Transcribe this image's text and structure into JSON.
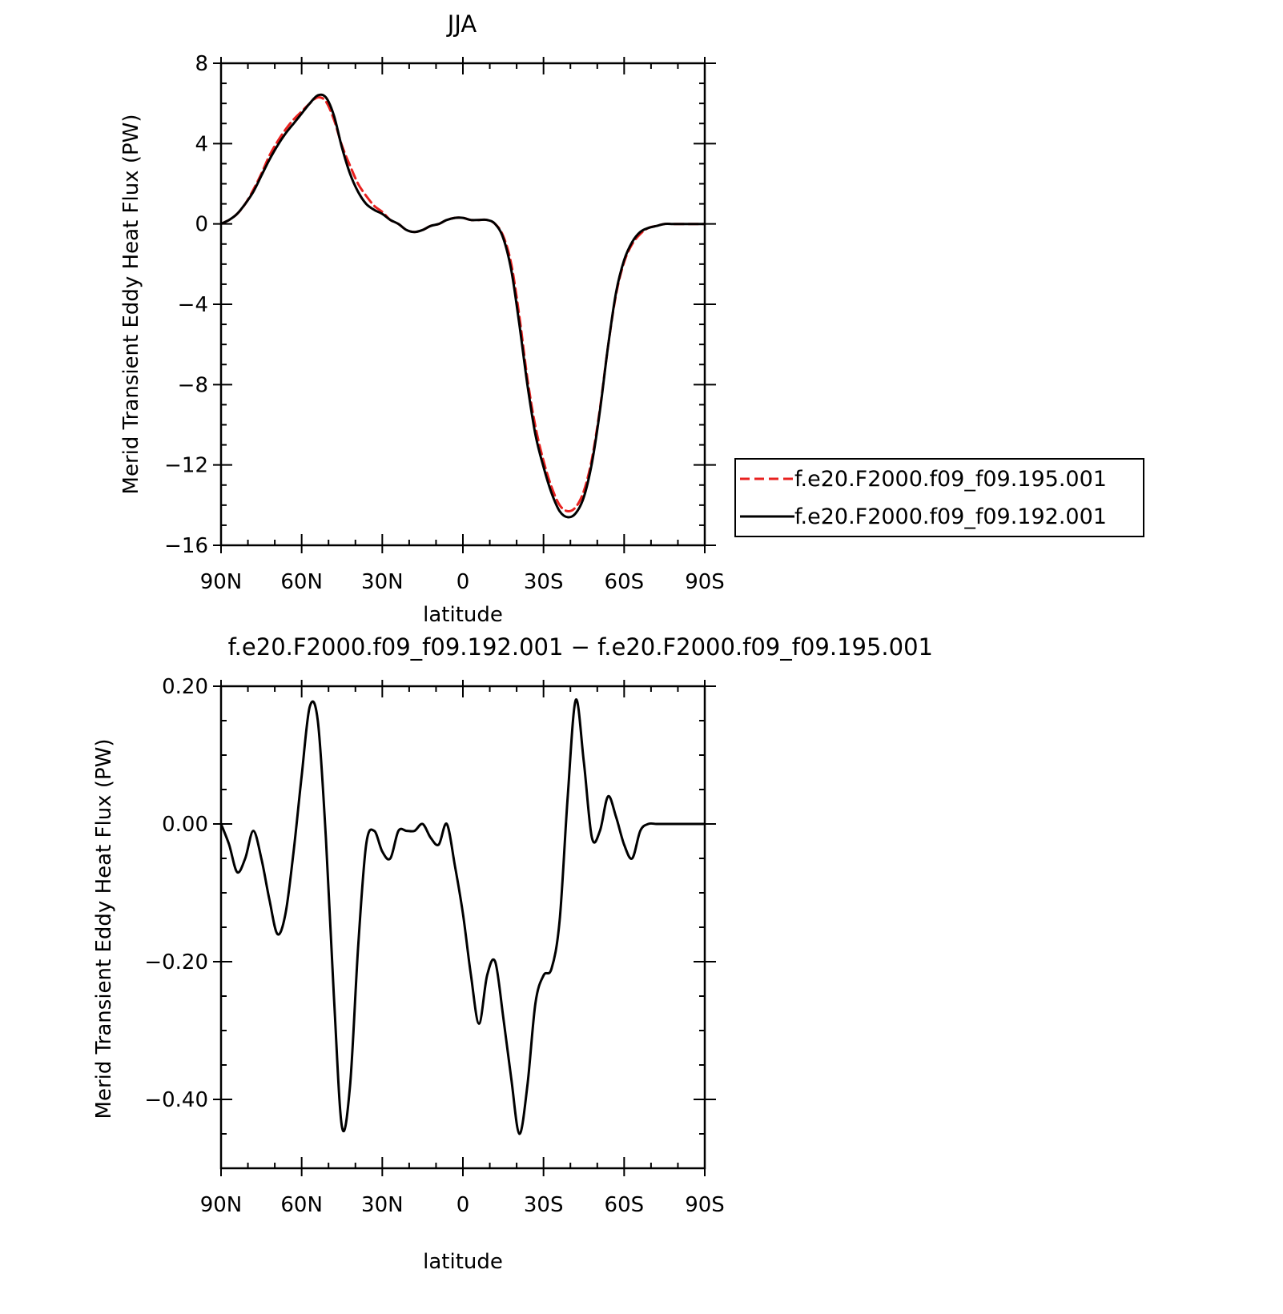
{
  "chart_data": [
    {
      "type": "line",
      "title": "JJA",
      "xlabel": "latitude",
      "ylabel": "Merid Transient Eddy Heat Flux (PW)",
      "xlim": [
        90,
        -90
      ],
      "ylim": [
        -16,
        8
      ],
      "x_ticks": [
        {
          "value": 90,
          "label": "90N"
        },
        {
          "value": 60,
          "label": "60N"
        },
        {
          "value": 30,
          "label": "30N"
        },
        {
          "value": 0,
          "label": "0"
        },
        {
          "value": -30,
          "label": "30S"
        },
        {
          "value": -60,
          "label": "60S"
        },
        {
          "value": -90,
          "label": "90S"
        }
      ],
      "y_ticks": [
        {
          "value": 8,
          "label": "8"
        },
        {
          "value": 4,
          "label": "4"
        },
        {
          "value": 0,
          "label": "0"
        },
        {
          "value": -4,
          "label": "−4"
        },
        {
          "value": -8,
          "label": "−8"
        },
        {
          "value": -12,
          "label": "−12"
        },
        {
          "value": -16,
          "label": "−16"
        }
      ],
      "grid": false,
      "legend": "right",
      "series": [
        {
          "name": "f.e20.F2000.f09_f09.195.001",
          "color": "#e8211f",
          "style": "dashed",
          "x": [
            90,
            87,
            84,
            81,
            78,
            75,
            72,
            69,
            66,
            63,
            60,
            57,
            54,
            51,
            48,
            45,
            42,
            39,
            36,
            33,
            30,
            27,
            24,
            21,
            18,
            15,
            12,
            9,
            6,
            3,
            0,
            -3,
            -6,
            -9,
            -12,
            -15,
            -18,
            -21,
            -24,
            -27,
            -30,
            -33,
            -36,
            -39,
            -42,
            -45,
            -48,
            -51,
            -54,
            -57,
            -60,
            -63,
            -66,
            -69,
            -72,
            -75,
            -78,
            -81,
            -84,
            -87,
            -90
          ],
          "values": [
            0.0,
            0.2,
            0.5,
            1.0,
            1.7,
            2.5,
            3.4,
            4.1,
            4.7,
            5.2,
            5.6,
            6.0,
            6.3,
            6.1,
            5.2,
            3.9,
            2.9,
            2.0,
            1.4,
            0.9,
            0.6,
            0.2,
            0.0,
            -0.3,
            -0.4,
            -0.3,
            -0.1,
            0.0,
            0.2,
            0.3,
            0.3,
            0.2,
            0.2,
            0.2,
            0.0,
            -0.6,
            -2.0,
            -4.6,
            -7.7,
            -10.1,
            -11.8,
            -13.1,
            -14.0,
            -14.3,
            -14.1,
            -13.3,
            -11.7,
            -9.2,
            -6.1,
            -3.5,
            -1.9,
            -1.0,
            -0.5,
            -0.2,
            -0.1,
            0.0,
            0.0,
            0.0,
            0.0,
            0.0,
            0.0
          ]
        },
        {
          "name": "f.e20.F2000.f09_f09.192.001",
          "color": "#000000",
          "style": "solid",
          "x": [
            90,
            87,
            84,
            81,
            78,
            75,
            72,
            69,
            66,
            63,
            60,
            57,
            54,
            51,
            48,
            45,
            42,
            39,
            36,
            33,
            30,
            27,
            24,
            21,
            18,
            15,
            12,
            9,
            6,
            3,
            0,
            -3,
            -6,
            -9,
            -12,
            -15,
            -18,
            -21,
            -24,
            -27,
            -30,
            -33,
            -36,
            -39,
            -42,
            -45,
            -48,
            -51,
            -54,
            -57,
            -60,
            -63,
            -66,
            -69,
            -72,
            -75,
            -78,
            -81,
            -84,
            -87,
            -90
          ],
          "values": [
            0.0,
            0.2,
            0.5,
            1.0,
            1.6,
            2.4,
            3.2,
            3.9,
            4.5,
            5.0,
            5.5,
            6.0,
            6.4,
            6.3,
            5.4,
            3.8,
            2.5,
            1.6,
            1.0,
            0.7,
            0.5,
            0.2,
            0.0,
            -0.3,
            -0.4,
            -0.3,
            -0.1,
            0.0,
            0.2,
            0.3,
            0.3,
            0.2,
            0.2,
            0.2,
            0.0,
            -0.7,
            -2.3,
            -5.0,
            -8.0,
            -10.5,
            -12.1,
            -13.4,
            -14.3,
            -14.6,
            -14.4,
            -13.6,
            -11.9,
            -9.3,
            -6.1,
            -3.4,
            -1.8,
            -0.9,
            -0.4,
            -0.2,
            -0.1,
            0.0,
            0.0,
            0.0,
            0.0,
            0.0,
            0.0
          ]
        }
      ]
    },
    {
      "type": "line",
      "title": "f.e20.F2000.f09_f09.192.001 − f.e20.F2000.f09_f09.195.001",
      "xlabel": "latitude",
      "ylabel": "Merid Transient Eddy Heat Flux (PW)",
      "xlim": [
        90,
        -90
      ],
      "ylim": [
        -0.5,
        0.2
      ],
      "x_ticks": [
        {
          "value": 90,
          "label": "90N"
        },
        {
          "value": 60,
          "label": "60N"
        },
        {
          "value": 30,
          "label": "30N"
        },
        {
          "value": 0,
          "label": "0"
        },
        {
          "value": -30,
          "label": "30S"
        },
        {
          "value": -60,
          "label": "60S"
        },
        {
          "value": -90,
          "label": "90S"
        }
      ],
      "y_ticks": [
        {
          "value": 0.2,
          "label": "0.20"
        },
        {
          "value": 0.0,
          "label": "0.00"
        },
        {
          "value": -0.2,
          "label": "−0.20"
        },
        {
          "value": -0.4,
          "label": "−0.40"
        }
      ],
      "grid": false,
      "series": [
        {
          "color": "#000000",
          "style": "solid",
          "x": [
            90,
            87,
            84,
            81,
            78,
            75,
            72,
            69,
            66,
            63,
            60,
            57,
            54,
            51,
            48,
            45,
            42,
            39,
            36,
            33,
            30,
            27,
            24,
            21,
            18,
            15,
            12,
            9,
            6,
            3,
            0,
            -3,
            -6,
            -9,
            -12,
            -15,
            -18,
            -21,
            -24,
            -27,
            -30,
            -33,
            -36,
            -39,
            -42,
            -45,
            -48,
            -51,
            -54,
            -57,
            -60,
            -63,
            -66,
            -69,
            -72,
            -75,
            -78,
            -81,
            -84,
            -87,
            -90
          ],
          "values": [
            0.0,
            -0.03,
            -0.07,
            -0.05,
            -0.01,
            -0.05,
            -0.11,
            -0.16,
            -0.13,
            -0.04,
            0.07,
            0.17,
            0.15,
            -0.02,
            -0.25,
            -0.44,
            -0.38,
            -0.18,
            -0.03,
            -0.01,
            -0.04,
            -0.05,
            -0.01,
            -0.01,
            -0.01,
            0.0,
            -0.02,
            -0.03,
            0.0,
            -0.06,
            -0.13,
            -0.22,
            -0.29,
            -0.22,
            -0.2,
            -0.28,
            -0.37,
            -0.45,
            -0.38,
            -0.26,
            -0.22,
            -0.21,
            -0.14,
            0.04,
            0.18,
            0.09,
            -0.02,
            -0.01,
            0.04,
            0.01,
            -0.03,
            -0.05,
            -0.01,
            0.0,
            0.0,
            0.0,
            0.0,
            0.0,
            0.0,
            0.0,
            0.0
          ]
        }
      ]
    }
  ]
}
